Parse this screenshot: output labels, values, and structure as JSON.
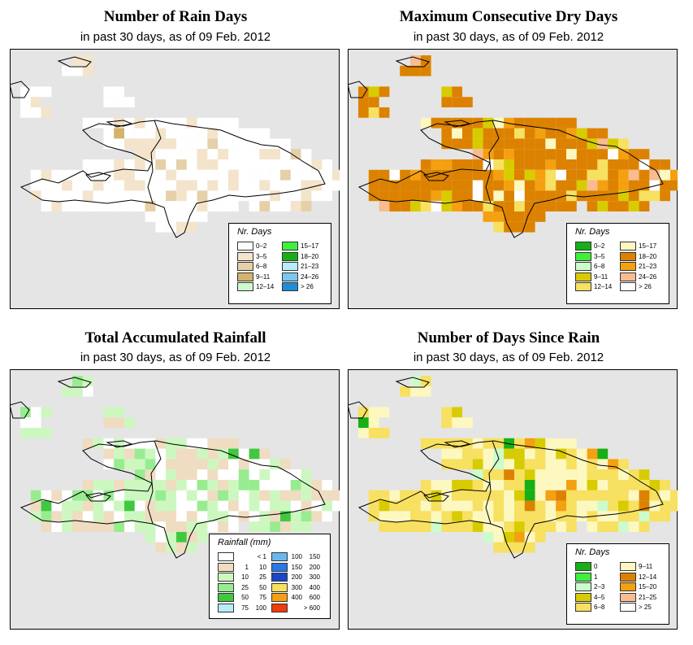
{
  "panels": [
    {
      "title": "Number of Rain Days",
      "subtitle": "in past 30 days, as of  09 Feb. 2012",
      "legend_title": "Nr. Days",
      "legend_left": [
        {
          "label": "0–2",
          "color": "#ffffff"
        },
        {
          "label": "3–5",
          "color": "#f3e4cb"
        },
        {
          "label": "6–8",
          "color": "#e5d0a8"
        },
        {
          "label": "9–11",
          "color": "#d6b36a"
        },
        {
          "label": "12–14",
          "color": "#ccfccc"
        }
      ],
      "legend_right": [
        {
          "label": "15–17",
          "color": "#3cf03c"
        },
        {
          "label": "18–20",
          "color": "#16b016"
        },
        {
          "label": "21–23",
          "color": "#b8ecf8"
        },
        {
          "label": "24–26",
          "color": "#78c8f0"
        },
        {
          "label": "> 26",
          "color": "#1e8ed8"
        }
      ]
    },
    {
      "title": "Maximum Consecutive Dry Days",
      "subtitle": "in past 30 days, as of  09 Feb. 2012",
      "legend_title": "Nr. Days",
      "legend_left": [
        {
          "label": "0–2",
          "color": "#16b016"
        },
        {
          "label": "3–5",
          "color": "#3cf03c"
        },
        {
          "label": "6–8",
          "color": "#ccfccc"
        },
        {
          "label": "9–11",
          "color": "#d8cc00"
        },
        {
          "label": "12–14",
          "color": "#f8e060"
        }
      ],
      "legend_right": [
        {
          "label": "15–17",
          "color": "#fcf8c0"
        },
        {
          "label": "18–20",
          "color": "#dc8200"
        },
        {
          "label": "21–23",
          "color": "#f4a010"
        },
        {
          "label": "24–26",
          "color": "#f8bc90"
        },
        {
          "label": "> 26",
          "color": "#ffffff"
        }
      ]
    },
    {
      "title": "Total Accumulated Rainfall",
      "subtitle": "in past 30 days, as of  09 Feb. 2012",
      "legend_title": "Rainfall (mm)",
      "legend_left": [
        {
          "lo": "",
          "hi": "< 1",
          "color": "#ffffff"
        },
        {
          "lo": "1",
          "hi": "10",
          "color": "#f0dcc0"
        },
        {
          "lo": "10",
          "hi": "25",
          "color": "#ccf8c0"
        },
        {
          "lo": "25",
          "hi": "50",
          "color": "#98ec90"
        },
        {
          "lo": "50",
          "hi": "75",
          "color": "#40c840"
        },
        {
          "lo": "75",
          "hi": "100",
          "color": "#b8ecf8"
        }
      ],
      "legend_right": [
        {
          "lo": "100",
          "hi": "150",
          "color": "#68b8f0"
        },
        {
          "lo": "150",
          "hi": "200",
          "color": "#2878e8"
        },
        {
          "lo": "200",
          "hi": "300",
          "color": "#1848c8"
        },
        {
          "lo": "300",
          "hi": "400",
          "color": "#f8e060"
        },
        {
          "lo": "400",
          "hi": "600",
          "color": "#f4a010"
        },
        {
          "lo": "",
          "hi": "> 600",
          "color": "#ee3c0c"
        }
      ]
    },
    {
      "title": "Number of Days Since Rain",
      "subtitle": "in past 30 days, as of  09 Feb. 2012",
      "legend_title": "Nr. Days",
      "legend_left": [
        {
          "label": "0",
          "color": "#16b016"
        },
        {
          "label": "1",
          "color": "#3cf03c"
        },
        {
          "label": "2–3",
          "color": "#ccfccc"
        },
        {
          "label": "4–5",
          "color": "#d8cc00"
        },
        {
          "label": "6–8",
          "color": "#f8e060"
        }
      ],
      "legend_right": [
        {
          "label": "9–11",
          "color": "#fcf8c0"
        },
        {
          "label": "12–14",
          "color": "#dc8200"
        },
        {
          "label": "15–20",
          "color": "#f4a010"
        },
        {
          "label": "21–25",
          "color": "#f8bc90"
        },
        {
          "label": "> 25",
          "color": "#ffffff"
        }
      ]
    }
  ]
}
